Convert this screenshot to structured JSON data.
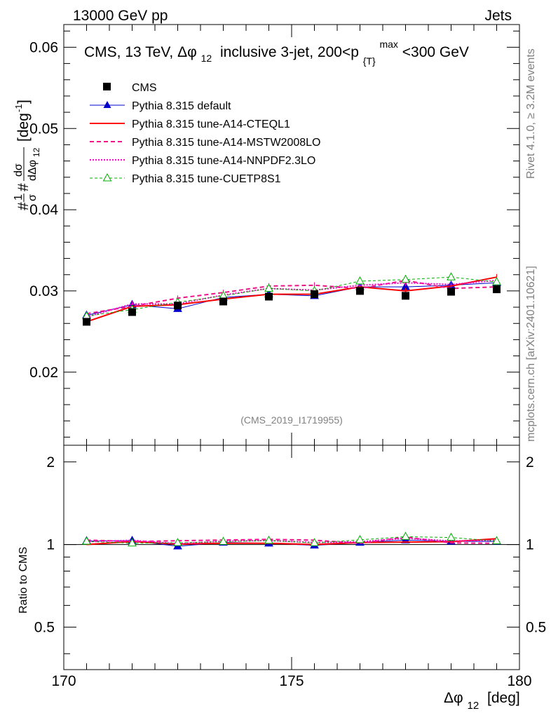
{
  "header": {
    "left": "13000 GeV pp",
    "right": "Jets"
  },
  "side_labels": {
    "rivet": "Rivet 4.1.0, ≥ 3.2M events",
    "mcplots": "mcplots.cern.ch [arXiv:2401.10621]"
  },
  "chart_data": {
    "type": "line",
    "title": "CMS, 13 TeV, Δφ12 inclusive 3-jet, 200<pT max<300 GeV",
    "title_parts": {
      "prefix": "CMS, 13 TeV,",
      "sym": "Δφ",
      "sub12": "12",
      "mid": "inclusive 3-jet, 200<p",
      "subT": "{T}",
      "sup": "max",
      "suffix": "<300 GeV"
    },
    "analysis_id": "(CMS_2019_I1719955)",
    "xlabel": "Δφ12 [deg]",
    "xlabel_parts": {
      "sym": "Δφ",
      "sub": "12",
      "unit": "[deg]"
    },
    "ylabel_main": "#1/σ# dσ/dΔφ12 [deg-1]",
    "ylabel_parts": {
      "hash1": "#",
      "one": "1",
      "sigma": "σ",
      "hash2": "#",
      "num": "dσ",
      "den": "dΔφ",
      "den_sub": "12",
      "unit_open": "[deg",
      "unit_sup": "-1",
      "unit_close": "]"
    },
    "ylabel_ratio": "Ratio to CMS",
    "xlim": [
      170,
      180
    ],
    "ylim": [
      0.011,
      0.0628
    ],
    "ratio_ylim": [
      0.35,
      2.3
    ],
    "x_ticks": [
      {
        "v": 170,
        "label": "170"
      },
      {
        "v": 175,
        "label": "175"
      },
      {
        "v": 180,
        "label": "180"
      }
    ],
    "y_ticks": [
      {
        "v": 0.02,
        "label": "0.02"
      },
      {
        "v": 0.03,
        "label": "0.03"
      },
      {
        "v": 0.04,
        "label": "0.04"
      },
      {
        "v": 0.05,
        "label": "0.05"
      },
      {
        "v": 0.06,
        "label": "0.06"
      }
    ],
    "ratio_ticks": [
      {
        "v": 0.5,
        "label": "0.5"
      },
      {
        "v": 1,
        "label": "1"
      },
      {
        "v": 2,
        "label": "2"
      }
    ],
    "x": [
      170.5,
      171.5,
      172.5,
      173.5,
      174.5,
      175.5,
      176.5,
      177.5,
      178.5,
      179.5
    ],
    "data": {
      "name": "CMS",
      "values": [
        0.0262,
        0.0274,
        0.0282,
        0.0287,
        0.0293,
        0.0296,
        0.03,
        0.0294,
        0.0299,
        0.0302
      ],
      "errors": [
        0.0003,
        0.0003,
        0.0003,
        0.0003,
        0.0003,
        0.0003,
        0.0003,
        0.0003,
        0.0003,
        0.0003
      ]
    },
    "series": [
      {
        "name": "Pythia 8.315 default",
        "color": "#0000cc",
        "dash": "",
        "marker": "triangle-filled",
        "width": 1,
        "values": [
          0.027,
          0.0283,
          0.0278,
          0.0292,
          0.0296,
          0.0294,
          0.0305,
          0.0305,
          0.0307,
          0.031
        ]
      },
      {
        "name": "Pythia 8.315 tune-A14-CTEQL1",
        "color": "#ff0000",
        "dash": "",
        "marker": "none",
        "width": 2,
        "values": [
          0.0262,
          0.0281,
          0.0283,
          0.029,
          0.0296,
          0.0296,
          0.0305,
          0.03,
          0.0306,
          0.0317
        ]
      },
      {
        "name": "Pythia 8.315 tune-A14-MSTW2008LO",
        "color": "#ee1188",
        "dash": "6,4",
        "marker": "none",
        "width": 2,
        "values": [
          0.0272,
          0.0281,
          0.0291,
          0.0298,
          0.0306,
          0.0307,
          0.0303,
          0.0313,
          0.0303,
          0.0305
        ]
      },
      {
        "name": "Pythia 8.315 tune-A14-NNPDF2.3LO",
        "color": "#ff00cc",
        "dash": "2,2",
        "marker": "none",
        "width": 2,
        "values": [
          0.0268,
          0.0284,
          0.0284,
          0.0295,
          0.0303,
          0.0301,
          0.0307,
          0.031,
          0.0308,
          0.0313
        ]
      },
      {
        "name": "Pythia 8.315 tune-CUETP8S1",
        "color": "#00b000",
        "dash": "4,3",
        "marker": "triangle-open",
        "width": 1,
        "values": [
          0.0269,
          0.0277,
          0.0286,
          0.0294,
          0.0303,
          0.03,
          0.0312,
          0.0314,
          0.0317,
          0.0311
        ]
      }
    ]
  }
}
